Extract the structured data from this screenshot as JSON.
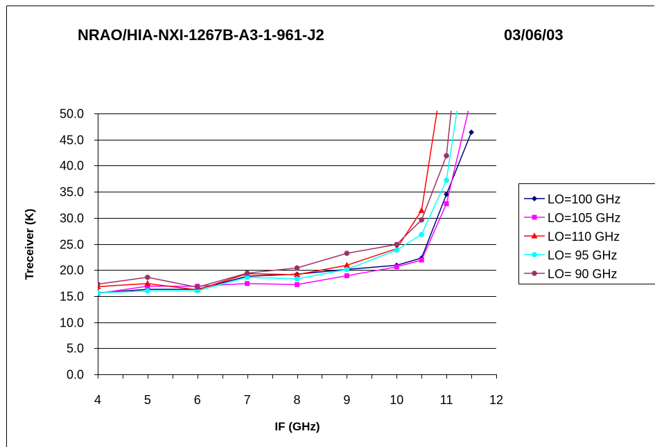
{
  "chart_data": {
    "type": "line",
    "title": "NRAO/HIA-NXI-1267B-A3-1-961-J2",
    "date": "03/06/03",
    "xlabel": "IF (GHz)",
    "ylabel": "Treceiver (K)",
    "xlim": [
      4,
      12
    ],
    "ylim": [
      0,
      50
    ],
    "x_ticks": [
      "4",
      "5",
      "6",
      "7",
      "8",
      "9",
      "10",
      "11",
      "12"
    ],
    "y_ticks": [
      "0.0",
      "5.0",
      "10.0",
      "15.0",
      "20.0",
      "25.0",
      "30.0",
      "35.0",
      "40.0",
      "45.0",
      "50.0"
    ],
    "grid": "horizontal",
    "legend_position": "right",
    "series": [
      {
        "name": "LO=100 GHz",
        "color": "#000080",
        "marker": "diamond",
        "x": [
          4,
          5,
          6,
          7,
          8,
          9,
          10,
          10.5,
          11,
          11.5
        ],
        "y": [
          15.6,
          16.3,
          16.3,
          18.8,
          19.2,
          20.1,
          20.9,
          22.3,
          34.5,
          46.4
        ]
      },
      {
        "name": "LO=105 GHz",
        "color": "#ff00ff",
        "marker": "square",
        "x": [
          4,
          5,
          6,
          7,
          8,
          9,
          10,
          10.5,
          11,
          11.45
        ],
        "y": [
          15.5,
          16.9,
          16.9,
          17.4,
          17.2,
          18.9,
          20.6,
          21.9,
          32.7,
          51
        ]
      },
      {
        "name": "LO=110 GHz",
        "color": "#ff0000",
        "marker": "triangle",
        "x": [
          4,
          5,
          6,
          7,
          8,
          9,
          10,
          10.5,
          10.82
        ],
        "y": [
          16.8,
          17.4,
          16.2,
          19.3,
          19.1,
          20.9,
          24.1,
          31.4,
          51
        ]
      },
      {
        "name": "LO= 95 GHz",
        "color": "#00ffff",
        "marker": "circle",
        "x": [
          4,
          5,
          6,
          7,
          8,
          9,
          10,
          10.5,
          11,
          11.22
        ],
        "y": [
          15.6,
          16.0,
          16.0,
          18.6,
          18.3,
          20.1,
          23.8,
          26.8,
          37.2,
          51
        ]
      },
      {
        "name": "LO= 90 GHz",
        "color": "#993366",
        "marker": "circle",
        "x": [
          4,
          5,
          6,
          7,
          8,
          9,
          10,
          10.5,
          11,
          11.1
        ],
        "y": [
          17.3,
          18.6,
          16.7,
          19.4,
          20.4,
          23.2,
          24.9,
          29.6,
          41.9,
          51
        ]
      }
    ]
  }
}
